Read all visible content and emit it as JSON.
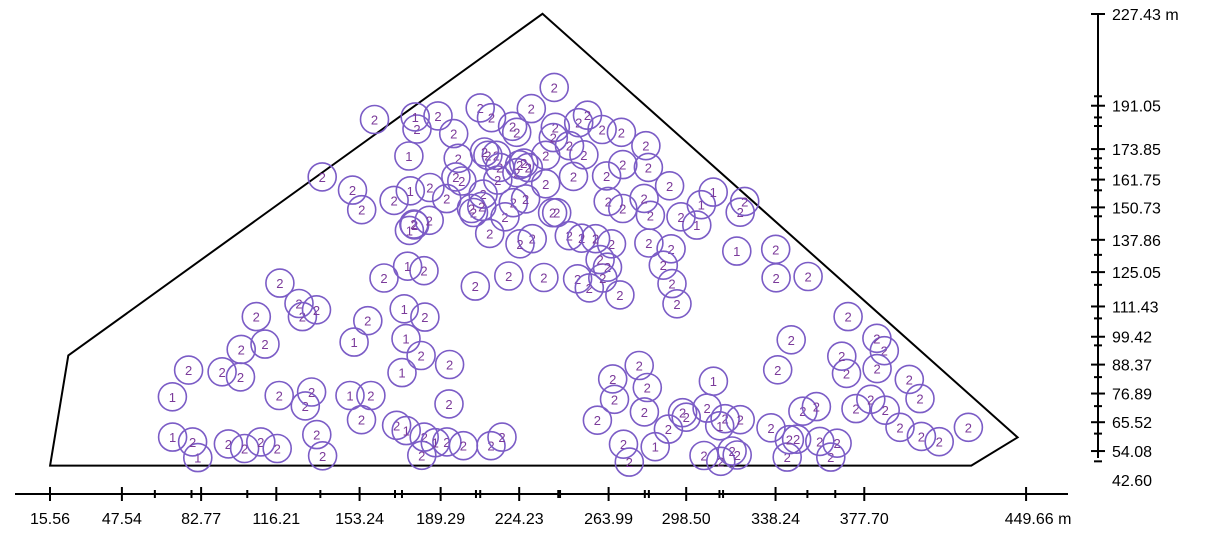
{
  "chart_data": {
    "type": "scatter",
    "x_unit": "m",
    "y_unit": "m",
    "xlim": [
      0,
      468.3
    ],
    "ylim": [
      42.6,
      227.43
    ],
    "x_axis": {
      "labels": [
        "15.56",
        "47.54",
        "82.77",
        "116.21",
        "153.24",
        "189.29",
        "224.23",
        "263.99",
        "298.50",
        "338.24",
        "377.70",
        "449.66 m"
      ],
      "label_values": [
        15.56,
        47.54,
        82.77,
        116.21,
        153.24,
        189.29,
        224.23,
        263.99,
        298.5,
        338.24,
        377.7,
        449.66
      ],
      "minor_ticks": [
        78.5,
        62.2,
        103.3,
        135.8,
        169.0,
        172.1,
        205.0,
        206.9,
        241.6,
        242.4,
        280.1,
        281.9,
        313.3,
        314.9,
        352.4,
        364.8
      ]
    },
    "y_axis": {
      "labels": [
        "227.43 m",
        "191.05",
        "173.85",
        "161.75",
        "150.73",
        "137.86",
        "125.05",
        "111.43",
        "99.42",
        "88.37",
        "76.89",
        "65.52",
        "54.08",
        "42.60"
      ],
      "label_values": [
        227.43,
        191.05,
        173.85,
        161.75,
        150.73,
        137.86,
        125.05,
        111.43,
        99.42,
        88.37,
        76.89,
        65.52,
        54.08,
        42.6
      ],
      "minor_ticks": [
        194.8,
        186.4,
        183.0,
        170.2,
        166.4,
        157.5,
        147.2,
        131.9,
        120.0,
        106.7,
        96.0,
        83.4,
        71.9,
        61.0,
        50.0
      ]
    },
    "boundary": [
      [
        15.6,
        48.3
      ],
      [
        23.7,
        92.0
      ],
      [
        234.6,
        227.5
      ],
      [
        445.9,
        59.5
      ],
      [
        425.3,
        48.3
      ]
    ],
    "points": [
      {
        "x": 81.3,
        "y": 51.5,
        "label": "1"
      },
      {
        "x": 70.1,
        "y": 59.6,
        "label": "1"
      },
      {
        "x": 70.0,
        "y": 75.6,
        "label": "1"
      },
      {
        "x": 77.2,
        "y": 86.2,
        "label": "2"
      },
      {
        "x": 79.0,
        "y": 57.7,
        "label": "2"
      },
      {
        "x": 92.1,
        "y": 85.5,
        "label": "2"
      },
      {
        "x": 100.6,
        "y": 94.4,
        "label": "2"
      },
      {
        "x": 100.3,
        "y": 83.5,
        "label": "2"
      },
      {
        "x": 94.9,
        "y": 56.9,
        "label": "2"
      },
      {
        "x": 102.1,
        "y": 55.1,
        "label": "2"
      },
      {
        "x": 107.3,
        "y": 107.4,
        "label": "2"
      },
      {
        "x": 109.3,
        "y": 57.7,
        "label": "2"
      },
      {
        "x": 111.2,
        "y": 96.5,
        "label": "2"
      },
      {
        "x": 117.8,
        "y": 120.7,
        "label": "2"
      },
      {
        "x": 117.5,
        "y": 76.1,
        "label": "2"
      },
      {
        "x": 116.6,
        "y": 55.1,
        "label": "2"
      },
      {
        "x": 126.3,
        "y": 112.6,
        "label": "2"
      },
      {
        "x": 127.8,
        "y": 107.4,
        "label": "2"
      },
      {
        "x": 134.1,
        "y": 110.1,
        "label": "2"
      },
      {
        "x": 129.1,
        "y": 72.0,
        "label": "2"
      },
      {
        "x": 136.6,
        "y": 162.8,
        "label": "2"
      },
      {
        "x": 131.9,
        "y": 77.5,
        "label": "2"
      },
      {
        "x": 134.2,
        "y": 60.6,
        "label": "2"
      },
      {
        "x": 150.1,
        "y": 157.6,
        "label": "2"
      },
      {
        "x": 136.8,
        "y": 52.2,
        "label": "2"
      },
      {
        "x": 159.9,
        "y": 185.6,
        "label": "2"
      },
      {
        "x": 154.2,
        "y": 149.8,
        "label": "2"
      },
      {
        "x": 156.9,
        "y": 105.8,
        "label": "2"
      },
      {
        "x": 158.3,
        "y": 76.1,
        "label": "2"
      },
      {
        "x": 154.1,
        "y": 66.5,
        "label": "2"
      },
      {
        "x": 164.1,
        "y": 122.7,
        "label": "2"
      },
      {
        "x": 168.6,
        "y": 153.5,
        "label": "2"
      },
      {
        "x": 169.7,
        "y": 64.3,
        "label": "2"
      },
      {
        "x": 177.4,
        "y": 144.1,
        "label": "2"
      },
      {
        "x": 178.8,
        "y": 181.8,
        "label": "2"
      },
      {
        "x": 177.7,
        "y": 143.8,
        "label": "2"
      },
      {
        "x": 182.3,
        "y": 107.2,
        "label": "2"
      },
      {
        "x": 180.6,
        "y": 92.0,
        "label": "2"
      },
      {
        "x": 182.0,
        "y": 59.6,
        "label": "2"
      },
      {
        "x": 181.9,
        "y": 125.6,
        "label": "2"
      },
      {
        "x": 180.9,
        "y": 52.4,
        "label": "2"
      },
      {
        "x": 193.3,
        "y": 88.4,
        "label": "2"
      },
      {
        "x": 192.1,
        "y": 57.7,
        "label": "2"
      },
      {
        "x": 193.0,
        "y": 72.8,
        "label": "2"
      },
      {
        "x": 198.7,
        "y": 161.2,
        "label": "2"
      },
      {
        "x": 199.4,
        "y": 56.2,
        "label": "2"
      },
      {
        "x": 204.7,
        "y": 119.5,
        "label": "2"
      },
      {
        "x": 208.2,
        "y": 156.0,
        "label": "2"
      },
      {
        "x": 211.1,
        "y": 140.4,
        "label": "2"
      },
      {
        "x": 211.7,
        "y": 56.2,
        "label": "2"
      },
      {
        "x": 214.1,
        "y": 171.4,
        "label": "2"
      },
      {
        "x": 216.6,
        "y": 59.6,
        "label": "2"
      },
      {
        "x": 217.9,
        "y": 147.0,
        "label": "2"
      },
      {
        "x": 219.6,
        "y": 123.5,
        "label": "2"
      },
      {
        "x": 221.3,
        "y": 182.9,
        "label": "2"
      },
      {
        "x": 221.6,
        "y": 152.6,
        "label": "2"
      },
      {
        "x": 223.2,
        "y": 164.5,
        "label": "2"
      },
      {
        "x": 228.3,
        "y": 166.5,
        "label": "2"
      },
      {
        "x": 230.0,
        "y": 138.3,
        "label": "2"
      },
      {
        "x": 235.2,
        "y": 122.9,
        "label": "2"
      },
      {
        "x": 236.0,
        "y": 171.4,
        "label": "2"
      },
      {
        "x": 239.1,
        "y": 148.6,
        "label": "2"
      },
      {
        "x": 246.5,
        "y": 139.5,
        "label": "2"
      },
      {
        "x": 252.0,
        "y": 138.5,
        "label": "2"
      },
      {
        "x": 250.2,
        "y": 122.4,
        "label": "2"
      },
      {
        "x": 255.4,
        "y": 118.8,
        "label": "2"
      },
      {
        "x": 259.0,
        "y": 66.3,
        "label": "2"
      },
      {
        "x": 261.4,
        "y": 122.7,
        "label": "2"
      },
      {
        "x": 263.5,
        "y": 127.0,
        "label": "2"
      },
      {
        "x": 265.3,
        "y": 136.3,
        "label": "2"
      },
      {
        "x": 265.8,
        "y": 82.7,
        "label": "2"
      },
      {
        "x": 266.6,
        "y": 74.6,
        "label": "2"
      },
      {
        "x": 270.6,
        "y": 56.8,
        "label": "2"
      },
      {
        "x": 273.2,
        "y": 49.7,
        "label": "2"
      },
      {
        "x": 277.6,
        "y": 88.0,
        "label": "2"
      },
      {
        "x": 279.9,
        "y": 69.6,
        "label": "2"
      },
      {
        "x": 281.2,
        "y": 79.3,
        "label": "2"
      },
      {
        "x": 290.6,
        "y": 62.8,
        "label": "2"
      },
      {
        "x": 296.9,
        "y": 69.3,
        "label": "2"
      },
      {
        "x": 298.5,
        "y": 67.5,
        "label": "2"
      },
      {
        "x": 306.4,
        "y": 52.3,
        "label": "2"
      },
      {
        "x": 307.8,
        "y": 71.1,
        "label": "2"
      },
      {
        "x": 313.9,
        "y": 50.0,
        "label": "2"
      },
      {
        "x": 315.8,
        "y": 66.9,
        "label": "2"
      },
      {
        "x": 318.9,
        "y": 54.1,
        "label": "2"
      },
      {
        "x": 321.2,
        "y": 52.5,
        "label": "2"
      },
      {
        "x": 322.5,
        "y": 66.5,
        "label": "2"
      },
      {
        "x": 336.2,
        "y": 63.3,
        "label": "2"
      },
      {
        "x": 339.2,
        "y": 86.3,
        "label": "2"
      },
      {
        "x": 343.4,
        "y": 51.7,
        "label": "2"
      },
      {
        "x": 345.2,
        "y": 98.2,
        "label": "2"
      },
      {
        "x": 347.6,
        "y": 58.8,
        "label": "2"
      },
      {
        "x": 350.4,
        "y": 69.9,
        "label": "2"
      },
      {
        "x": 357.9,
        "y": 57.9,
        "label": "2"
      },
      {
        "x": 362.8,
        "y": 51.7,
        "label": "2"
      },
      {
        "x": 365.6,
        "y": 57.2,
        "label": "2"
      },
      {
        "x": 369.8,
        "y": 84.9,
        "label": "2"
      },
      {
        "x": 374.0,
        "y": 70.9,
        "label": "2"
      },
      {
        "x": 380.6,
        "y": 74.6,
        "label": "2"
      },
      {
        "x": 386.6,
        "y": 93.9,
        "label": "2"
      },
      {
        "x": 393.6,
        "y": 63.5,
        "label": "2"
      },
      {
        "x": 402.5,
        "y": 74.9,
        "label": "2"
      },
      {
        "x": 411.0,
        "y": 57.8,
        "label": "2"
      },
      {
        "x": 178.0,
        "y": 186.6,
        "label": "1"
      },
      {
        "x": 175.2,
        "y": 171.1,
        "label": "1"
      },
      {
        "x": 175.8,
        "y": 157.3,
        "label": "1"
      },
      {
        "x": 175.4,
        "y": 141.6,
        "label": "1"
      },
      {
        "x": 174.6,
        "y": 127.4,
        "label": "1"
      },
      {
        "x": 173.1,
        "y": 110.5,
        "label": "1"
      },
      {
        "x": 173.9,
        "y": 98.7,
        "label": "1"
      },
      {
        "x": 172.1,
        "y": 85.2,
        "label": "1"
      },
      {
        "x": 150.8,
        "y": 97.3,
        "label": "1"
      },
      {
        "x": 149.0,
        "y": 76.1,
        "label": "1"
      },
      {
        "x": 174.0,
        "y": 62.2,
        "label": "1"
      },
      {
        "x": 186.9,
        "y": 57.4,
        "label": "1"
      },
      {
        "x": 284.7,
        "y": 55.8,
        "label": "1"
      },
      {
        "x": 310.6,
        "y": 81.8,
        "label": "1"
      },
      {
        "x": 313.4,
        "y": 64.1,
        "label": "1"
      },
      {
        "x": 305.2,
        "y": 151.8,
        "label": "1"
      },
      {
        "x": 310.5,
        "y": 156.8,
        "label": "1"
      },
      {
        "x": 303.2,
        "y": 143.7,
        "label": "1"
      },
      {
        "x": 321.0,
        "y": 133.4,
        "label": "1"
      },
      {
        "x": 296.2,
        "y": 147.0,
        "label": "2"
      },
      {
        "x": 291.1,
        "y": 159.3,
        "label": "2"
      },
      {
        "x": 282.6,
        "y": 147.6,
        "label": "2"
      },
      {
        "x": 279.8,
        "y": 154.3,
        "label": "2"
      },
      {
        "x": 291.8,
        "y": 134.3,
        "label": "2"
      },
      {
        "x": 322.5,
        "y": 148.8,
        "label": "2"
      },
      {
        "x": 324.5,
        "y": 153.1,
        "label": "2"
      },
      {
        "x": 281.7,
        "y": 166.6,
        "label": "2"
      },
      {
        "x": 280.6,
        "y": 175.2,
        "label": "2"
      },
      {
        "x": 269.7,
        "y": 180.5,
        "label": "2"
      },
      {
        "x": 270.3,
        "y": 167.7,
        "label": "2"
      },
      {
        "x": 253.0,
        "y": 171.6,
        "label": "2"
      },
      {
        "x": 250.7,
        "y": 184.3,
        "label": "2"
      },
      {
        "x": 240.3,
        "y": 182.5,
        "label": "2"
      },
      {
        "x": 239.8,
        "y": 198.3,
        "label": "2"
      },
      {
        "x": 254.6,
        "y": 187.3,
        "label": "2"
      },
      {
        "x": 263.1,
        "y": 163.2,
        "label": "2"
      },
      {
        "x": 263.8,
        "y": 153.1,
        "label": "2"
      },
      {
        "x": 270.3,
        "y": 150.3,
        "label": "2"
      },
      {
        "x": 281.9,
        "y": 136.6,
        "label": "2"
      },
      {
        "x": 288.3,
        "y": 127.8,
        "label": "2"
      },
      {
        "x": 269.0,
        "y": 116.0,
        "label": "2"
      },
      {
        "x": 294.4,
        "y": 112.5,
        "label": "2"
      },
      {
        "x": 292.2,
        "y": 120.5,
        "label": "2"
      },
      {
        "x": 260.2,
        "y": 130.0,
        "label": "2"
      },
      {
        "x": 258.2,
        "y": 138.3,
        "label": "2"
      },
      {
        "x": 240.9,
        "y": 148.6,
        "label": "2"
      },
      {
        "x": 224.6,
        "y": 136.3,
        "label": "2"
      },
      {
        "x": 227.1,
        "y": 154.1,
        "label": "2"
      },
      {
        "x": 215.6,
        "y": 166.6,
        "label": "2"
      },
      {
        "x": 208.8,
        "y": 172.7,
        "label": "2"
      },
      {
        "x": 197.1,
        "y": 170.2,
        "label": "2"
      },
      {
        "x": 195.1,
        "y": 180.0,
        "label": "2"
      },
      {
        "x": 188.1,
        "y": 187.0,
        "label": "2"
      },
      {
        "x": 192.0,
        "y": 154.2,
        "label": "2"
      },
      {
        "x": 184.5,
        "y": 158.6,
        "label": "2"
      },
      {
        "x": 184.2,
        "y": 145.6,
        "label": "2"
      },
      {
        "x": 196.1,
        "y": 162.8,
        "label": "2"
      },
      {
        "x": 206.9,
        "y": 190.2,
        "label": "2"
      },
      {
        "x": 211.9,
        "y": 186.3,
        "label": "2"
      },
      {
        "x": 203.9,
        "y": 148.7,
        "label": "2"
      },
      {
        "x": 214.7,
        "y": 161.6,
        "label": "2"
      },
      {
        "x": 224.4,
        "y": 167.6,
        "label": "2"
      },
      {
        "x": 226.3,
        "y": 168.3,
        "label": "2"
      },
      {
        "x": 229.6,
        "y": 189.9,
        "label": "2"
      },
      {
        "x": 239.4,
        "y": 178.4,
        "label": "2"
      },
      {
        "x": 246.6,
        "y": 175.2,
        "label": "2"
      },
      {
        "x": 261.1,
        "y": 181.6,
        "label": "2"
      },
      {
        "x": 223.1,
        "y": 180.5,
        "label": "2"
      },
      {
        "x": 210.3,
        "y": 171.4,
        "label": "2"
      },
      {
        "x": 248.4,
        "y": 163.0,
        "label": "2"
      },
      {
        "x": 236.0,
        "y": 160.1,
        "label": "2"
      },
      {
        "x": 203.0,
        "y": 150.3,
        "label": "2"
      },
      {
        "x": 207.6,
        "y": 151.1,
        "label": "2"
      },
      {
        "x": 338.3,
        "y": 134.1,
        "label": "2"
      },
      {
        "x": 338.5,
        "y": 122.8,
        "label": "2"
      },
      {
        "x": 352.7,
        "y": 123.3,
        "label": "2"
      },
      {
        "x": 370.5,
        "y": 107.4,
        "label": "2"
      },
      {
        "x": 367.7,
        "y": 91.7,
        "label": "2"
      },
      {
        "x": 383.3,
        "y": 98.8,
        "label": "2"
      },
      {
        "x": 383.4,
        "y": 86.8,
        "label": "2"
      },
      {
        "x": 397.7,
        "y": 82.5,
        "label": "2"
      },
      {
        "x": 424.0,
        "y": 63.5,
        "label": "2"
      },
      {
        "x": 403.1,
        "y": 59.9,
        "label": "2"
      },
      {
        "x": 387.0,
        "y": 70.3,
        "label": "2"
      },
      {
        "x": 356.4,
        "y": 71.7,
        "label": "2"
      },
      {
        "x": 344.4,
        "y": 58.6,
        "label": "2"
      }
    ]
  }
}
